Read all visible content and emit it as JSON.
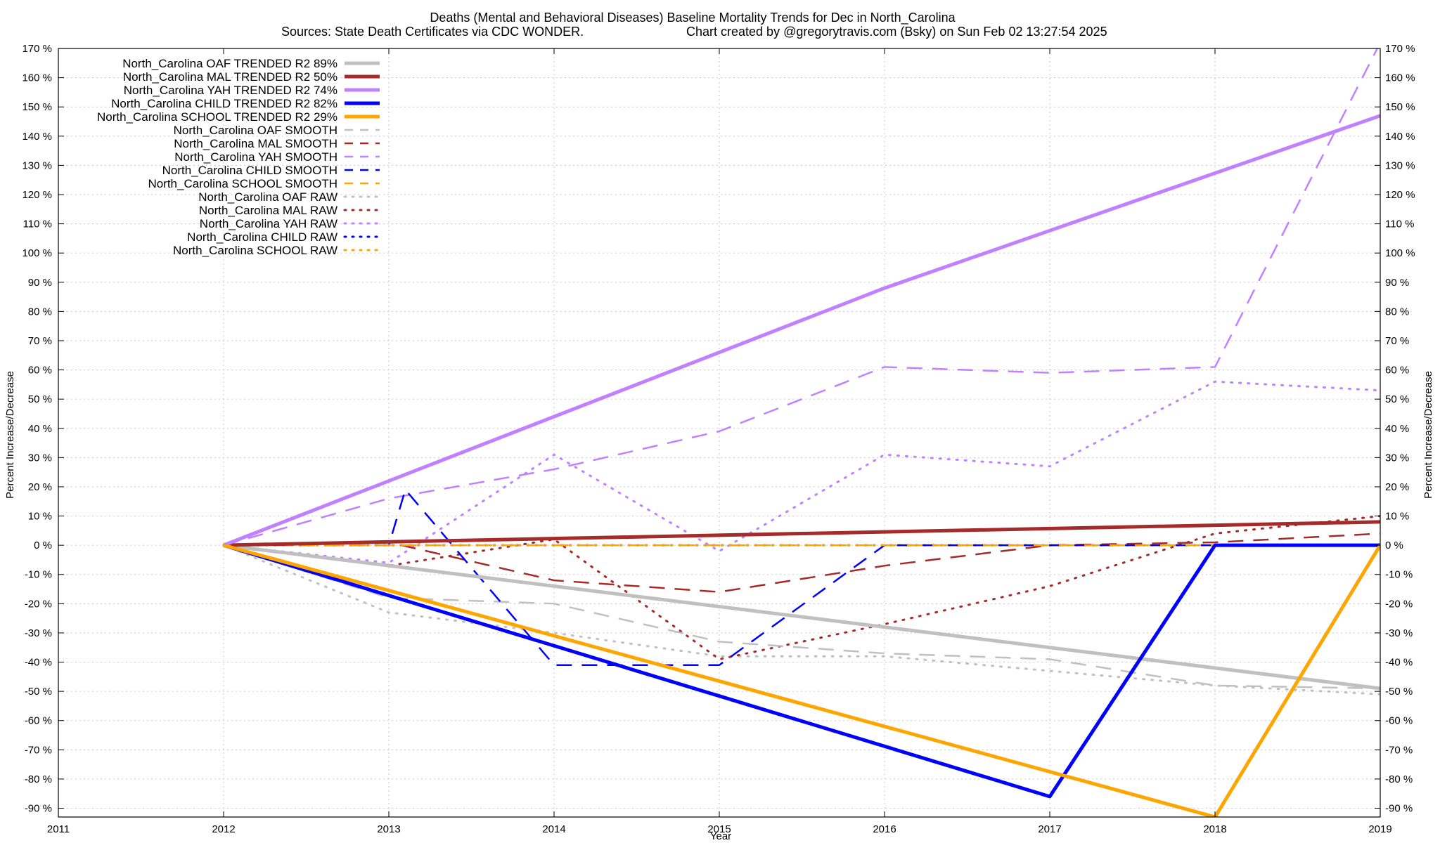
{
  "chart_data": {
    "type": "line",
    "title": "Deaths (Mental and Behavioral Diseases)  Baseline Mortality Trends for Dec in North_Carolina",
    "subtitle_left": "Sources: State Death Certificates via CDC WONDER.",
    "subtitle_right": "Chart created by @gregorytravis.com (Bsky) on Sun Feb 02 13:27:54 2025",
    "xlabel": "Year",
    "ylabel": "Percent Increase/Decrease",
    "y2label": "Percent Increase/Decrease",
    "xlim": [
      2011,
      2019
    ],
    "ylim": [
      -93,
      170
    ],
    "x_ticks": [
      2011,
      2012,
      2013,
      2014,
      2015,
      2016,
      2017,
      2018,
      2019
    ],
    "y_ticks": [
      170,
      160,
      150,
      140,
      130,
      120,
      110,
      100,
      90,
      80,
      70,
      60,
      50,
      40,
      30,
      20,
      10,
      0,
      -10,
      -20,
      -30,
      -40,
      -50,
      -60,
      -70,
      -80,
      -90
    ],
    "y_tick_suffix": " %",
    "grid": true,
    "legend_position": "top-left",
    "colors": {
      "oaf": "#c0c0c0",
      "mal": "#a52a2a",
      "yah": "#c080ff",
      "child": "#0000ff",
      "school": "#ffa500"
    },
    "series": [
      {
        "name": "North_Carolina OAF TRENDED R2  89%",
        "color": "#c0c0c0",
        "style": "solid",
        "x": [
          2012,
          2019
        ],
        "y": [
          0,
          -49
        ]
      },
      {
        "name": "North_Carolina MAL TRENDED R2  50%",
        "color": "#a52a2a",
        "style": "solid",
        "x": [
          2012,
          2019
        ],
        "y": [
          0,
          8
        ]
      },
      {
        "name": "North_Carolina YAH TRENDED R2  74%",
        "color": "#c080ff",
        "style": "solid",
        "x": [
          2012,
          2016,
          2019
        ],
        "y": [
          0,
          88,
          147
        ]
      },
      {
        "name": "North_Carolina CHILD TRENDED R2  82%",
        "color": "#0000ff",
        "style": "solid",
        "x": [
          2012,
          2017,
          2018,
          2019
        ],
        "y": [
          0,
          -86,
          0,
          0
        ]
      },
      {
        "name": "North_Carolina SCHOOL TRENDED R2  29%",
        "color": "#ffa500",
        "style": "solid",
        "x": [
          2012,
          2018,
          2019
        ],
        "y": [
          0,
          -93,
          0
        ]
      },
      {
        "name": "North_Carolina OAF SMOOTH",
        "color": "#c0c0c0",
        "style": "dashed",
        "x": [
          2012,
          2013,
          2014,
          2015,
          2016,
          2017,
          2018,
          2019
        ],
        "y": [
          0,
          -18,
          -20,
          -33,
          -37,
          -39,
          -48,
          -49
        ]
      },
      {
        "name": "North_Carolina MAL SMOOTH",
        "color": "#a52a2a",
        "style": "dashed",
        "x": [
          2012,
          2013,
          2014,
          2015,
          2016,
          2017,
          2018,
          2019
        ],
        "y": [
          0,
          1,
          -12,
          -16,
          -7,
          0,
          1,
          4
        ]
      },
      {
        "name": "North_Carolina YAH SMOOTH",
        "color": "#c080ff",
        "style": "dashed",
        "x": [
          2012,
          2013,
          2014,
          2015,
          2016,
          2017,
          2018,
          2019
        ],
        "y": [
          0,
          16,
          26,
          39,
          61,
          59,
          61,
          172
        ]
      },
      {
        "name": "North_Carolina CHILD SMOOTH",
        "color": "#0000ff",
        "style": "dashed",
        "x": [
          2012,
          2013,
          2013.1,
          2014,
          2015,
          2016,
          2017,
          2018,
          2019
        ],
        "y": [
          0,
          0,
          19,
          -41,
          -41,
          0,
          0,
          0,
          0
        ]
      },
      {
        "name": "North_Carolina SCHOOL SMOOTH",
        "color": "#ffa500",
        "style": "dashed",
        "x": [
          2012,
          2019
        ],
        "y": [
          0,
          0
        ]
      },
      {
        "name": "North_Carolina OAF RAW",
        "color": "#c0c0c0",
        "style": "dotted",
        "x": [
          2012,
          2013,
          2014,
          2015,
          2016,
          2017,
          2018,
          2019
        ],
        "y": [
          0,
          -23,
          -30,
          -38,
          -38,
          -43,
          -48,
          -51
        ]
      },
      {
        "name": "North_Carolina MAL RAW",
        "color": "#a52a2a",
        "style": "dotted",
        "x": [
          2012,
          2013,
          2014,
          2015,
          2016,
          2017,
          2018,
          2019
        ],
        "y": [
          0,
          -7,
          2,
          -39,
          -27,
          -14,
          4,
          10
        ]
      },
      {
        "name": "North_Carolina YAH RAW",
        "color": "#c080ff",
        "style": "dotted",
        "x": [
          2012,
          2013,
          2014,
          2015,
          2016,
          2017,
          2018,
          2019
        ],
        "y": [
          0,
          -6,
          31,
          -2,
          31,
          27,
          56,
          53
        ]
      },
      {
        "name": "North_Carolina CHILD RAW",
        "color": "#0000ff",
        "style": "dotted",
        "x": [
          2012,
          2019
        ],
        "y": [
          0,
          0
        ]
      },
      {
        "name": "North_Carolina SCHOOL RAW",
        "color": "#ffa500",
        "style": "dotted",
        "x": [
          2012,
          2019
        ],
        "y": [
          0,
          0
        ]
      }
    ]
  }
}
